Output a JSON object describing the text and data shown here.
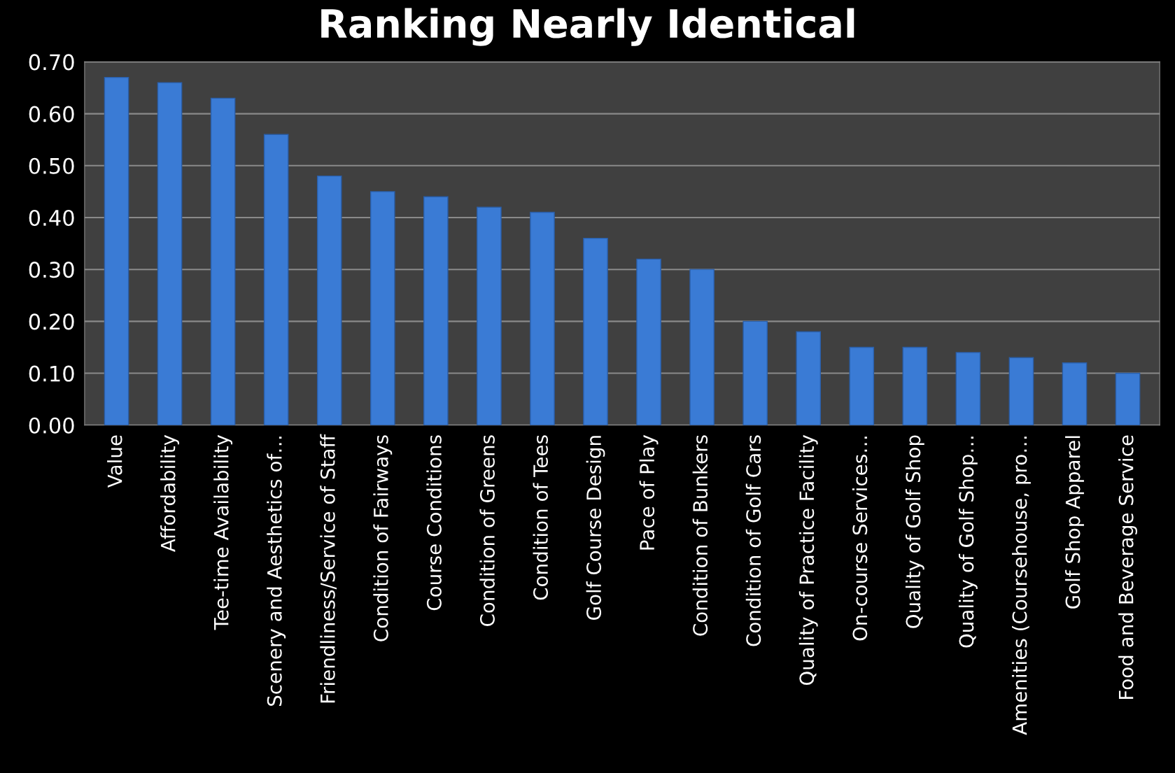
{
  "chart_data": {
    "type": "bar",
    "title": "Ranking Nearly Identical",
    "categories": [
      "Value",
      "Affordability",
      "Tee-time Availability",
      "Scenery and Aesthetics of…",
      "Friendliness/Service of Staff",
      "Condition of Fairways",
      "Course Conditions",
      "Condition of Greens",
      "Condition of Tees",
      "Golf Course Design",
      "Pace of Play",
      "Condition of Bunkers",
      "Condition of Golf Cars",
      "Quality of Practice Facility",
      "On-course Services…",
      "Quality of Golf Shop",
      "Quality of Golf Shop…",
      "Amenities (Coursehouse, pro…",
      "Golf Shop Apparel",
      "Food and Beverage Service"
    ],
    "values": [
      0.67,
      0.66,
      0.63,
      0.56,
      0.48,
      0.45,
      0.44,
      0.42,
      0.41,
      0.36,
      0.32,
      0.3,
      0.2,
      0.18,
      0.15,
      0.15,
      0.14,
      0.13,
      0.12,
      0.1
    ],
    "color": "#3a7bd5",
    "ylim": [
      0,
      0.7
    ],
    "yticks": [
      {
        "value": 0,
        "label": "0.00"
      },
      {
        "value": 0.1,
        "label": "0.10"
      },
      {
        "value": 0.2,
        "label": "0.20"
      },
      {
        "value": 0.3,
        "label": "0.30"
      },
      {
        "value": 0.4,
        "label": "0.40"
      },
      {
        "value": 0.5,
        "label": "0.50"
      },
      {
        "value": 0.6,
        "label": "0.60"
      },
      {
        "value": 0.7,
        "label": "0.70"
      }
    ],
    "grid": "y"
  }
}
